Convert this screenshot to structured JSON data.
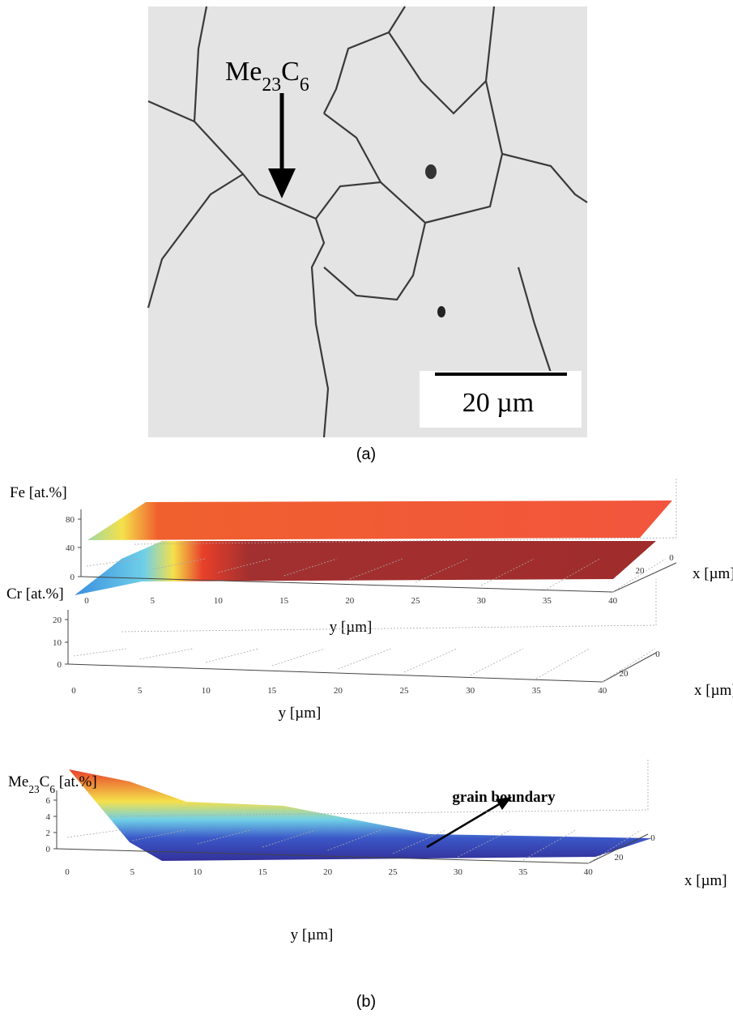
{
  "panel_a": {
    "label_parts": [
      "Me",
      "23",
      "C",
      "6"
    ],
    "scale_bar": "20 µm",
    "caption": "(a)"
  },
  "panel_b": {
    "plots": [
      {
        "z_label_parts": [
          "Fe [at.%]"
        ],
        "z_ticks": [
          80,
          40,
          0
        ],
        "y_ticks": [
          0,
          5,
          10,
          15,
          20,
          25,
          30,
          35,
          40
        ],
        "y_label": "y [µm]",
        "x_ticks": [
          20,
          0
        ],
        "x_label": "x [µm]"
      },
      {
        "z_label_parts": [
          "Cr [at.%]"
        ],
        "z_ticks": [
          20,
          10,
          0
        ],
        "y_ticks": [
          0,
          5,
          10,
          15,
          20,
          25,
          30,
          35,
          40
        ],
        "y_label": "y [µm]",
        "x_ticks": [
          20,
          0
        ],
        "x_label": "x [µm]"
      },
      {
        "z_label_parts": [
          "Me",
          "23",
          "C",
          "6",
          " [at.%]"
        ],
        "z_ticks": [
          6,
          4,
          2,
          0
        ],
        "y_ticks": [
          0,
          5,
          10,
          15,
          20,
          25,
          30,
          35,
          40
        ],
        "y_label": "y [µm]",
        "x_ticks": [
          20,
          0
        ],
        "x_label": "x [µm]"
      }
    ],
    "annotation": "grain boundary",
    "caption": "(b)"
  }
}
